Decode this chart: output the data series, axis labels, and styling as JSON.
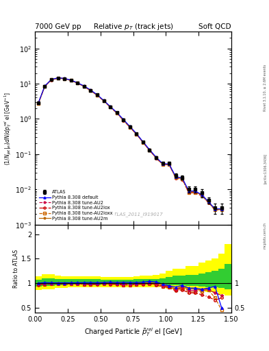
{
  "x_data": [
    0.025,
    0.075,
    0.125,
    0.175,
    0.225,
    0.275,
    0.325,
    0.375,
    0.425,
    0.475,
    0.525,
    0.575,
    0.625,
    0.675,
    0.725,
    0.775,
    0.825,
    0.875,
    0.925,
    0.975,
    1.025,
    1.075,
    1.125,
    1.175,
    1.225,
    1.275,
    1.325,
    1.375,
    1.425
  ],
  "atlas_y": [
    2.8,
    8.5,
    13.0,
    14.5,
    14.0,
    12.5,
    10.5,
    8.5,
    6.5,
    4.8,
    3.3,
    2.2,
    1.5,
    0.95,
    0.6,
    0.38,
    0.22,
    0.13,
    0.08,
    0.055,
    0.055,
    0.025,
    0.022,
    0.01,
    0.01,
    0.008,
    0.005,
    0.003,
    0.003
  ],
  "atlas_yerr": [
    0.15,
    0.3,
    0.4,
    0.5,
    0.5,
    0.45,
    0.4,
    0.35,
    0.3,
    0.25,
    0.18,
    0.13,
    0.09,
    0.06,
    0.04,
    0.025,
    0.016,
    0.01,
    0.007,
    0.005,
    0.005,
    0.003,
    0.003,
    0.002,
    0.002,
    0.002,
    0.001,
    0.001,
    0.001
  ],
  "default_y": [
    2.8,
    8.6,
    13.1,
    14.6,
    14.1,
    12.6,
    10.6,
    8.6,
    6.6,
    4.85,
    3.35,
    2.25,
    1.52,
    0.97,
    0.61,
    0.385,
    0.225,
    0.135,
    0.082,
    0.054,
    0.052,
    0.023,
    0.021,
    0.009,
    0.009,
    0.007,
    0.0045,
    0.0028,
    0.0028
  ],
  "au2_y": [
    2.75,
    8.4,
    12.9,
    14.4,
    13.9,
    12.4,
    10.4,
    8.4,
    6.4,
    4.75,
    3.28,
    2.18,
    1.48,
    0.93,
    0.585,
    0.375,
    0.218,
    0.13,
    0.079,
    0.052,
    0.052,
    0.022,
    0.02,
    0.0085,
    0.0085,
    0.007,
    0.0044,
    0.0027,
    0.0027
  ],
  "au2lox_y": [
    2.7,
    8.3,
    12.8,
    14.3,
    13.8,
    12.3,
    10.3,
    8.3,
    6.3,
    4.7,
    3.25,
    2.15,
    1.46,
    0.91,
    0.575,
    0.37,
    0.215,
    0.128,
    0.077,
    0.051,
    0.05,
    0.021,
    0.019,
    0.008,
    0.008,
    0.0065,
    0.0042,
    0.0026,
    0.0026
  ],
  "au2loxx_y": [
    2.72,
    8.32,
    12.82,
    14.32,
    13.82,
    12.32,
    10.32,
    8.32,
    6.32,
    4.72,
    3.26,
    2.16,
    1.47,
    0.915,
    0.578,
    0.372,
    0.217,
    0.129,
    0.078,
    0.0515,
    0.0505,
    0.0215,
    0.0195,
    0.0082,
    0.0082,
    0.0067,
    0.0043,
    0.0026,
    0.0026
  ],
  "au2m_y": [
    2.75,
    8.45,
    12.95,
    14.45,
    13.95,
    12.45,
    10.45,
    8.45,
    6.45,
    4.78,
    3.3,
    2.2,
    1.5,
    0.945,
    0.595,
    0.38,
    0.22,
    0.132,
    0.08,
    0.053,
    0.051,
    0.022,
    0.0205,
    0.0088,
    0.0088,
    0.0068,
    0.0043,
    0.0027,
    0.0027
  ],
  "ratio_default": [
    1.0,
    1.012,
    1.008,
    1.007,
    1.007,
    1.008,
    1.009,
    1.012,
    1.015,
    1.01,
    1.015,
    1.023,
    1.013,
    1.021,
    1.017,
    1.013,
    1.023,
    1.038,
    1.025,
    0.982,
    0.945,
    0.92,
    0.955,
    0.9,
    0.9,
    0.875,
    0.9,
    0.933,
    0.5
  ],
  "ratio_au2": [
    0.982,
    0.988,
    0.992,
    0.993,
    0.993,
    0.992,
    0.99,
    0.988,
    0.985,
    0.99,
    0.994,
    0.991,
    0.987,
    0.979,
    0.975,
    0.987,
    0.991,
    1.0,
    0.988,
    0.945,
    0.945,
    0.88,
    0.909,
    0.85,
    0.85,
    0.875,
    0.88,
    0.8,
    0.75
  ],
  "ratio_au2lox": [
    0.964,
    0.976,
    0.985,
    0.986,
    0.986,
    0.984,
    0.981,
    0.976,
    0.969,
    0.979,
    0.985,
    0.977,
    0.973,
    0.958,
    0.958,
    0.974,
    0.977,
    0.985,
    0.963,
    0.927,
    0.909,
    0.84,
    0.864,
    0.8,
    0.8,
    0.76,
    0.72,
    0.65,
    0.7
  ],
  "ratio_au2loxx": [
    0.971,
    0.979,
    0.986,
    0.987,
    0.987,
    0.985,
    0.983,
    0.979,
    0.972,
    0.981,
    0.988,
    0.981,
    0.98,
    0.963,
    0.963,
    0.979,
    0.986,
    0.992,
    0.975,
    0.936,
    0.918,
    0.86,
    0.886,
    0.82,
    0.82,
    0.838,
    0.86,
    0.7,
    0.45
  ],
  "ratio_au2m": [
    0.982,
    0.994,
    0.996,
    0.997,
    0.996,
    0.996,
    0.995,
    0.994,
    0.992,
    0.996,
    1.0,
    1.0,
    1.0,
    0.995,
    0.992,
    1.0,
    1.0,
    1.015,
    1.0,
    0.964,
    0.927,
    0.88,
    0.932,
    0.88,
    0.88,
    0.85,
    0.86,
    0.8,
    0.75
  ],
  "band_x": [
    0.0,
    0.05,
    0.1,
    0.15,
    0.2,
    0.25,
    0.3,
    0.35,
    0.4,
    0.45,
    0.5,
    0.55,
    0.6,
    0.65,
    0.7,
    0.75,
    0.8,
    0.85,
    0.9,
    0.95,
    1.0,
    1.05,
    1.1,
    1.15,
    1.2,
    1.25,
    1.3,
    1.35,
    1.4,
    1.45
  ],
  "green_band_lo": [
    0.93,
    0.95,
    0.95,
    0.96,
    0.96,
    0.97,
    0.97,
    0.97,
    0.96,
    0.96,
    0.97,
    0.97,
    0.97,
    0.97,
    0.97,
    0.97,
    0.97,
    0.97,
    0.97,
    0.98,
    0.96,
    0.96,
    0.96,
    0.95,
    0.95,
    0.93,
    0.92,
    0.92,
    0.9,
    0.88
  ],
  "green_band_hi": [
    1.07,
    1.1,
    1.1,
    1.09,
    1.08,
    1.08,
    1.08,
    1.08,
    1.08,
    1.08,
    1.07,
    1.07,
    1.07,
    1.07,
    1.07,
    1.08,
    1.08,
    1.08,
    1.09,
    1.1,
    1.12,
    1.15,
    1.15,
    1.17,
    1.17,
    1.2,
    1.22,
    1.25,
    1.3,
    1.4
  ],
  "yellow_band_lo": [
    0.86,
    0.88,
    0.88,
    0.9,
    0.9,
    0.91,
    0.92,
    0.92,
    0.91,
    0.91,
    0.91,
    0.92,
    0.92,
    0.92,
    0.92,
    0.92,
    0.92,
    0.92,
    0.92,
    0.93,
    0.89,
    0.88,
    0.88,
    0.87,
    0.87,
    0.84,
    0.82,
    0.82,
    0.78,
    0.75
  ],
  "yellow_band_hi": [
    1.14,
    1.18,
    1.18,
    1.16,
    1.14,
    1.14,
    1.14,
    1.14,
    1.14,
    1.14,
    1.13,
    1.13,
    1.13,
    1.13,
    1.13,
    1.14,
    1.15,
    1.15,
    1.17,
    1.2,
    1.25,
    1.3,
    1.3,
    1.35,
    1.35,
    1.42,
    1.46,
    1.5,
    1.6,
    1.8
  ],
  "color_default": "#0000ff",
  "color_au2": "#cc0044",
  "color_au2lox": "#cc0000",
  "color_au2loxx": "#cc6600",
  "color_au2m": "#bb6600",
  "color_atlas": "#000000",
  "xlim": [
    0.0,
    1.5
  ],
  "ylim_main": [
    0.001,
    300
  ],
  "ylim_ratio": [
    0.4,
    2.2
  ],
  "header_left": "7000 GeV pp",
  "header_right": "Soft QCD",
  "title_main": "Relative $p_T$ (track jets)",
  "watermark": "ATLAS_2011_I919017",
  "ylabel_main": "(1/Njet|el)dN/dp$^{rel}_T$ el [GeV$^{-1}$]",
  "ylabel_ratio": "Ratio to ATLAS",
  "xlabel": "Charged Particle $p^{rel}_T$ el [GeV]",
  "rivet_text": "Rivet 3.1.10, ≥ 2.6M events",
  "arxiv_text": "[arXiv:1306.3436]",
  "mcplots_text": "mcplots.cern.ch"
}
